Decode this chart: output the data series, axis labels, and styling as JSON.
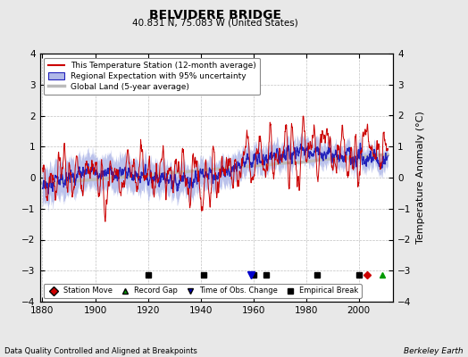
{
  "title": "BELVIDERE BRIDGE",
  "subtitle": "40.831 N, 75.083 W (United States)",
  "ylabel": "Temperature Anomaly (°C)",
  "xlabel_note": "Data Quality Controlled and Aligned at Breakpoints",
  "credit": "Berkeley Earth",
  "year_start": 1880,
  "year_end": 2011,
  "ylim": [
    -4,
    4
  ],
  "yticks": [
    -4,
    -3,
    -2,
    -1,
    0,
    1,
    2,
    3,
    4
  ],
  "xticks": [
    1880,
    1900,
    1920,
    1940,
    1960,
    1980,
    2000
  ],
  "bg_color": "#e8e8e8",
  "plot_bg_color": "#ffffff",
  "station_color": "#cc0000",
  "regional_color": "#2222bb",
  "regional_fill_color": "#b0b8e8",
  "global_color": "#bbbbbb",
  "legend_entries": [
    "This Temperature Station (12-month average)",
    "Regional Expectation with 95% uncertainty",
    "Global Land (5-year average)"
  ],
  "marker_events": {
    "station_move": [
      {
        "year": 2003,
        "color": "#cc0000",
        "marker": "D"
      }
    ],
    "record_gaps": [
      {
        "year": 2009,
        "color": "#009900",
        "marker": "^"
      }
    ],
    "time_obs_changes": [
      {
        "year": 1959,
        "color": "#0000cc",
        "marker": "v"
      }
    ],
    "empirical_breaks": [
      1920,
      1941,
      1960,
      1965,
      1984,
      2000
    ]
  },
  "seed": 17
}
